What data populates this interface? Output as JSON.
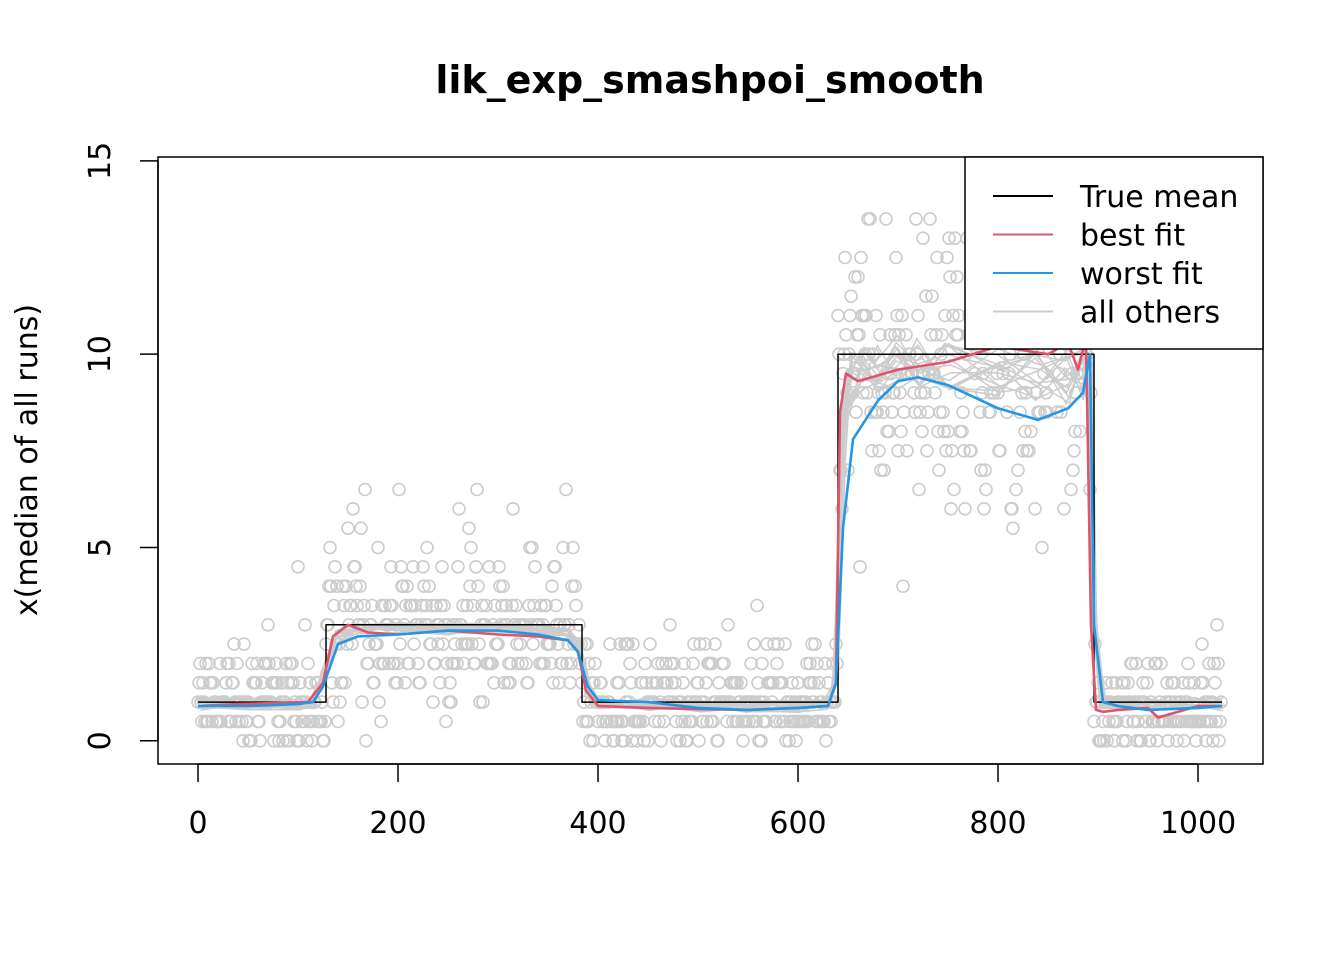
{
  "chart_data": {
    "type": "line",
    "title": "lik_exp_smashpoi_smooth",
    "xlabel": "",
    "ylabel": "x(median of all runs)",
    "xlim": [
      -40,
      1065
    ],
    "ylim": [
      -0.6,
      15.1
    ],
    "x_ticks": [
      0,
      200,
      400,
      600,
      800,
      1000
    ],
    "x_tick_labels": [
      "0",
      "200",
      "400",
      "600",
      "800",
      "1000"
    ],
    "y_ticks": [
      0,
      5,
      10,
      15
    ],
    "y_tick_labels": [
      "0",
      "5",
      "10",
      "15"
    ],
    "legend": {
      "position": "top-right",
      "entries": [
        {
          "label": "True mean",
          "color": "#000000"
        },
        {
          "label": "best fit",
          "color": "#DF536B"
        },
        {
          "label": "worst fit",
          "color": "#2297E6"
        },
        {
          "label": "all others",
          "color": "#CCCCCC"
        }
      ]
    },
    "series": [
      {
        "name": "True mean",
        "color": "#000000",
        "x": [
          0,
          128,
          128,
          384,
          384,
          640,
          640,
          896,
          896,
          1024
        ],
        "y": [
          1,
          1,
          3,
          3,
          1,
          1,
          10,
          10,
          1,
          1
        ]
      },
      {
        "name": "best fit",
        "color": "#DF536B",
        "x": [
          0,
          40,
          80,
          110,
          125,
          135,
          150,
          170,
          200,
          250,
          300,
          340,
          370,
          380,
          388,
          400,
          450,
          500,
          550,
          600,
          630,
          638,
          642,
          648,
          660,
          700,
          750,
          800,
          850,
          870,
          880,
          888,
          893,
          898,
          905,
          920,
          950,
          960,
          1000,
          1024
        ],
        "y": [
          0.9,
          0.95,
          0.98,
          1.0,
          1.5,
          2.7,
          3.0,
          2.8,
          2.75,
          2.85,
          2.75,
          2.7,
          2.6,
          2.3,
          1.3,
          0.9,
          0.85,
          0.82,
          0.8,
          0.85,
          0.9,
          1.5,
          8.5,
          9.5,
          9.3,
          9.6,
          9.8,
          10.2,
          10.0,
          10.3,
          9.6,
          10.4,
          3.0,
          0.8,
          0.75,
          0.8,
          0.85,
          0.6,
          0.9,
          0.9
        ]
      },
      {
        "name": "worst fit",
        "color": "#2297E6",
        "x": [
          0,
          50,
          100,
          115,
          125,
          140,
          160,
          200,
          250,
          300,
          340,
          370,
          380,
          390,
          400,
          450,
          500,
          550,
          600,
          630,
          638,
          645,
          655,
          665,
          680,
          700,
          720,
          750,
          800,
          840,
          870,
          885,
          892,
          896,
          905,
          920,
          950,
          1000,
          1024
        ],
        "y": [
          0.9,
          0.9,
          0.95,
          1.0,
          1.4,
          2.5,
          2.7,
          2.75,
          2.85,
          2.85,
          2.75,
          2.6,
          2.3,
          1.4,
          1.05,
          1.0,
          0.85,
          0.8,
          0.85,
          0.9,
          1.5,
          5.5,
          7.8,
          8.2,
          8.8,
          9.3,
          9.4,
          9.2,
          8.6,
          8.3,
          8.6,
          9.0,
          10.0,
          3.0,
          1.0,
          0.9,
          0.8,
          0.85,
          0.9
        ]
      }
    ],
    "others": {
      "name": "all others",
      "color": "#CCCCCC",
      "count": 14,
      "x": [
        0,
        50,
        100,
        115,
        125,
        140,
        160,
        200,
        250,
        300,
        340,
        370,
        380,
        390,
        400,
        450,
        500,
        550,
        600,
        630,
        638,
        645,
        655,
        665,
        680,
        700,
        720,
        750,
        800,
        840,
        870,
        885,
        892,
        896,
        905,
        920,
        950,
        1000,
        1024
      ],
      "y": [
        0.95,
        0.95,
        0.97,
        1.0,
        1.6,
        2.7,
        2.9,
        2.9,
        2.9,
        2.9,
        2.85,
        2.8,
        2.5,
        1.3,
        1.0,
        0.95,
        0.9,
        0.9,
        0.9,
        0.95,
        1.6,
        8.0,
        9.4,
        9.6,
        9.7,
        9.8,
        9.8,
        9.7,
        9.6,
        9.5,
        9.4,
        9.5,
        9.6,
        3.0,
        1.0,
        0.95,
        0.95,
        0.95,
        0.95
      ]
    },
    "points": {
      "color": "#CCCCCC",
      "n": 1024,
      "rate_segments": [
        {
          "from": 0,
          "to": 127,
          "mean": 1
        },
        {
          "from": 128,
          "to": 383,
          "mean": 3
        },
        {
          "from": 384,
          "to": 639,
          "mean": 1
        },
        {
          "from": 640,
          "to": 895,
          "mean": 10
        },
        {
          "from": 896,
          "to": 1023,
          "mean": 1
        }
      ]
    }
  }
}
